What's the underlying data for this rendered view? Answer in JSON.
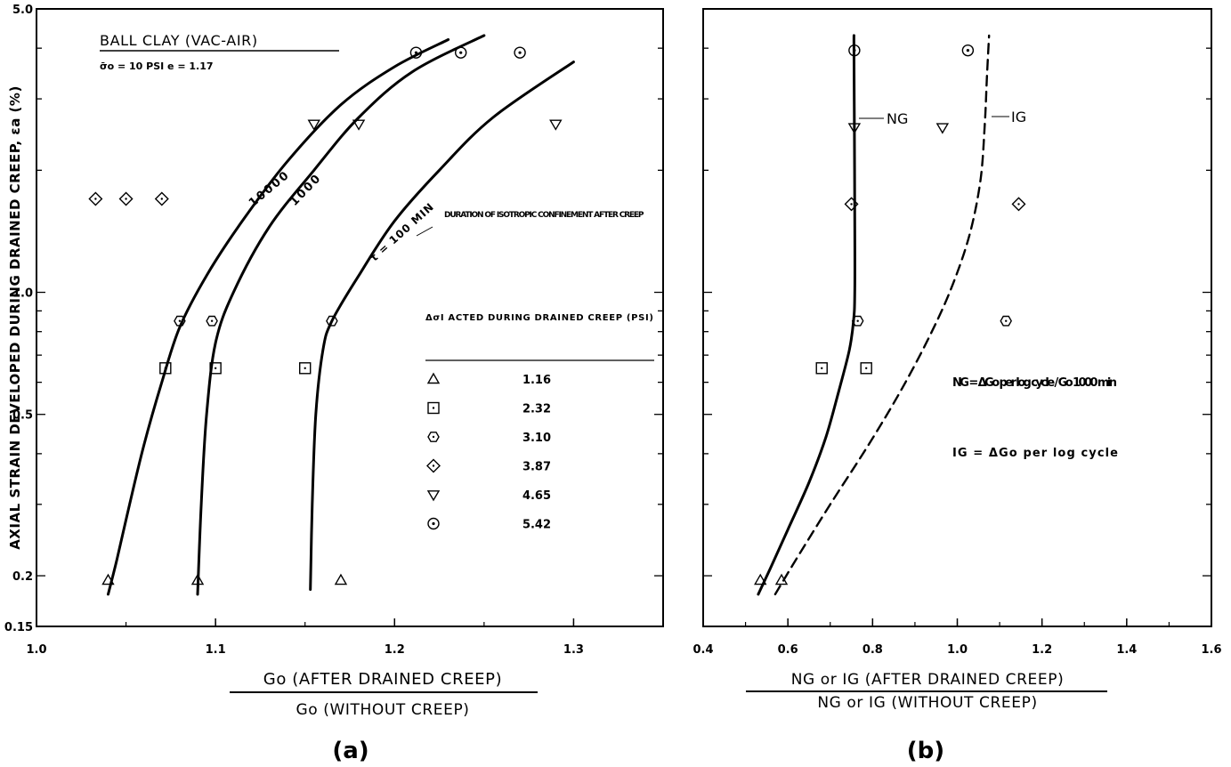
{
  "figure": {
    "ylabel": "AXIAL STRAIN DEVELOPED DURING DRAINED CREEP, εa (%)",
    "panel_a_label": "(a)",
    "panel_b_label": "(b)"
  },
  "chart_data": [
    {
      "type": "line",
      "panel": "(a)",
      "title": "BALL CLAY (VAC-AIR)",
      "subtitle": "σ̄o = 10 PSI     e = 1.17",
      "xlabel_top": "Go (AFTER DRAINED CREEP)",
      "xlabel_bottom": "Go (WITHOUT CREEP)",
      "xlim": [
        1.0,
        1.35
      ],
      "ylim": [
        0.15,
        5.0
      ],
      "yscale": "log",
      "xticks": [
        "1.0",
        "1.1",
        "1.2",
        "1.3"
      ],
      "yticks": [
        "0.15",
        "0.2",
        "0.5",
        "1.0",
        "5.0"
      ],
      "curve_annotation": "DURATION OF ISOTROPIC CONFINEMENT AFTER CREEP",
      "legend_title": "ΔσI ACTED DURING DRAINED CREEP (PSI)",
      "legend_placement": "lower-right",
      "legend": [
        {
          "marker": "triangle",
          "symbol": "△",
          "value": "1.16"
        },
        {
          "marker": "square",
          "symbol": "⊡",
          "value": "2.32"
        },
        {
          "marker": "hexagon",
          "symbol": "⬡",
          "value": "3.10"
        },
        {
          "marker": "diamond",
          "symbol": "◇",
          "value": "3.87"
        },
        {
          "marker": "triangle-down",
          "symbol": "▽",
          "value": "4.65"
        },
        {
          "marker": "circle",
          "symbol": "⊙",
          "value": "5.42"
        }
      ],
      "series": [
        {
          "name": "10000",
          "points": [
            [
              1.04,
              0.18
            ],
            [
              1.045,
              0.22
            ],
            [
              1.052,
              0.3
            ],
            [
              1.06,
              0.42
            ],
            [
              1.07,
              0.6
            ],
            [
              1.08,
              0.82
            ],
            [
              1.095,
              1.1
            ],
            [
              1.115,
              1.5
            ],
            [
              1.14,
              2.1
            ],
            [
              1.17,
              2.9
            ],
            [
              1.2,
              3.6
            ],
            [
              1.23,
              4.2
            ]
          ]
        },
        {
          "name": "1000",
          "points": [
            [
              1.09,
              0.18
            ],
            [
              1.092,
              0.3
            ],
            [
              1.095,
              0.5
            ],
            [
              1.1,
              0.75
            ],
            [
              1.11,
              1.0
            ],
            [
              1.13,
              1.45
            ],
            [
              1.155,
              2.0
            ],
            [
              1.18,
              2.7
            ],
            [
              1.21,
              3.5
            ],
            [
              1.25,
              4.3
            ]
          ]
        },
        {
          "name": "t = 100 MIN",
          "points": [
            [
              1.153,
              0.185
            ],
            [
              1.154,
              0.3
            ],
            [
              1.156,
              0.5
            ],
            [
              1.16,
              0.72
            ],
            [
              1.165,
              0.85
            ],
            [
              1.18,
              1.1
            ],
            [
              1.2,
              1.5
            ],
            [
              1.225,
              2.0
            ],
            [
              1.255,
              2.7
            ],
            [
              1.3,
              3.7
            ]
          ]
        }
      ],
      "markers": [
        {
          "marker": "triangle",
          "x": 1.04,
          "y": 0.195
        },
        {
          "marker": "triangle",
          "x": 1.09,
          "y": 0.195
        },
        {
          "marker": "triangle",
          "x": 1.17,
          "y": 0.195
        },
        {
          "marker": "square",
          "x": 1.072,
          "y": 0.65
        },
        {
          "marker": "square",
          "x": 1.1,
          "y": 0.65
        },
        {
          "marker": "square",
          "x": 1.15,
          "y": 0.65
        },
        {
          "marker": "hexagon",
          "x": 1.08,
          "y": 0.85
        },
        {
          "marker": "hexagon",
          "x": 1.098,
          "y": 0.85
        },
        {
          "marker": "hexagon",
          "x": 1.165,
          "y": 0.85
        },
        {
          "marker": "diamond",
          "x": 1.033,
          "y": 1.7
        },
        {
          "marker": "diamond",
          "x": 1.05,
          "y": 1.7
        },
        {
          "marker": "diamond",
          "x": 1.07,
          "y": 1.7
        },
        {
          "marker": "triangle-down",
          "x": 1.155,
          "y": 2.6
        },
        {
          "marker": "triangle-down",
          "x": 1.18,
          "y": 2.6
        },
        {
          "marker": "triangle-down",
          "x": 1.29,
          "y": 2.6
        },
        {
          "marker": "circle",
          "x": 1.212,
          "y": 3.9
        },
        {
          "marker": "circle",
          "x": 1.237,
          "y": 3.9
        },
        {
          "marker": "circle",
          "x": 1.27,
          "y": 3.9
        }
      ]
    },
    {
      "type": "line",
      "panel": "(b)",
      "xlabel_top": "NG or IG (AFTER DRAINED CREEP)",
      "xlabel_bottom": "NG or IG (WITHOUT CREEP)",
      "xlim": [
        0.4,
        1.6
      ],
      "ylim": [
        0.15,
        5.0
      ],
      "yscale": "log",
      "xticks": [
        "0.4",
        "0.6",
        "0.8",
        "1.0",
        "1.2",
        "1.4",
        "1.6"
      ],
      "equation_ng": "NG = ΔGo per log cycle / Go 1000 min",
      "equation_ig": "IG = ΔGo per log cycle",
      "series": [
        {
          "name": "NG",
          "style": "solid",
          "points": [
            [
              0.53,
              0.18
            ],
            [
              0.56,
              0.21
            ],
            [
              0.6,
              0.26
            ],
            [
              0.65,
              0.34
            ],
            [
              0.69,
              0.44
            ],
            [
              0.72,
              0.57
            ],
            [
              0.745,
              0.72
            ],
            [
              0.755,
              0.85
            ],
            [
              0.758,
              1.0
            ],
            [
              0.758,
              1.5
            ],
            [
              0.757,
              2.5
            ],
            [
              0.756,
              4.0
            ],
            [
              0.756,
              4.3
            ]
          ]
        },
        {
          "name": "IG",
          "style": "dashed",
          "points": [
            [
              0.57,
              0.18
            ],
            [
              0.62,
              0.22
            ],
            [
              0.7,
              0.3
            ],
            [
              0.79,
              0.42
            ],
            [
              0.87,
              0.58
            ],
            [
              0.94,
              0.8
            ],
            [
              0.99,
              1.05
            ],
            [
              1.03,
              1.4
            ],
            [
              1.055,
              1.9
            ],
            [
              1.065,
              2.6
            ],
            [
              1.07,
              3.4
            ],
            [
              1.075,
              4.3
            ]
          ]
        }
      ],
      "markers": [
        {
          "marker": "triangle",
          "x": 0.535,
          "y": 0.195
        },
        {
          "marker": "triangle",
          "x": 0.585,
          "y": 0.195
        },
        {
          "marker": "square",
          "x": 0.68,
          "y": 0.65
        },
        {
          "marker": "square",
          "x": 0.785,
          "y": 0.65
        },
        {
          "marker": "hexagon",
          "x": 0.765,
          "y": 0.85
        },
        {
          "marker": "hexagon",
          "x": 1.115,
          "y": 0.85
        },
        {
          "marker": "diamond",
          "x": 0.75,
          "y": 1.65
        },
        {
          "marker": "diamond",
          "x": 1.145,
          "y": 1.65
        },
        {
          "marker": "triangle-down",
          "x": 0.757,
          "y": 2.55
        },
        {
          "marker": "triangle-down",
          "x": 0.965,
          "y": 2.55
        },
        {
          "marker": "circle",
          "x": 0.757,
          "y": 3.95
        },
        {
          "marker": "circle",
          "x": 1.025,
          "y": 3.95
        }
      ]
    }
  ]
}
